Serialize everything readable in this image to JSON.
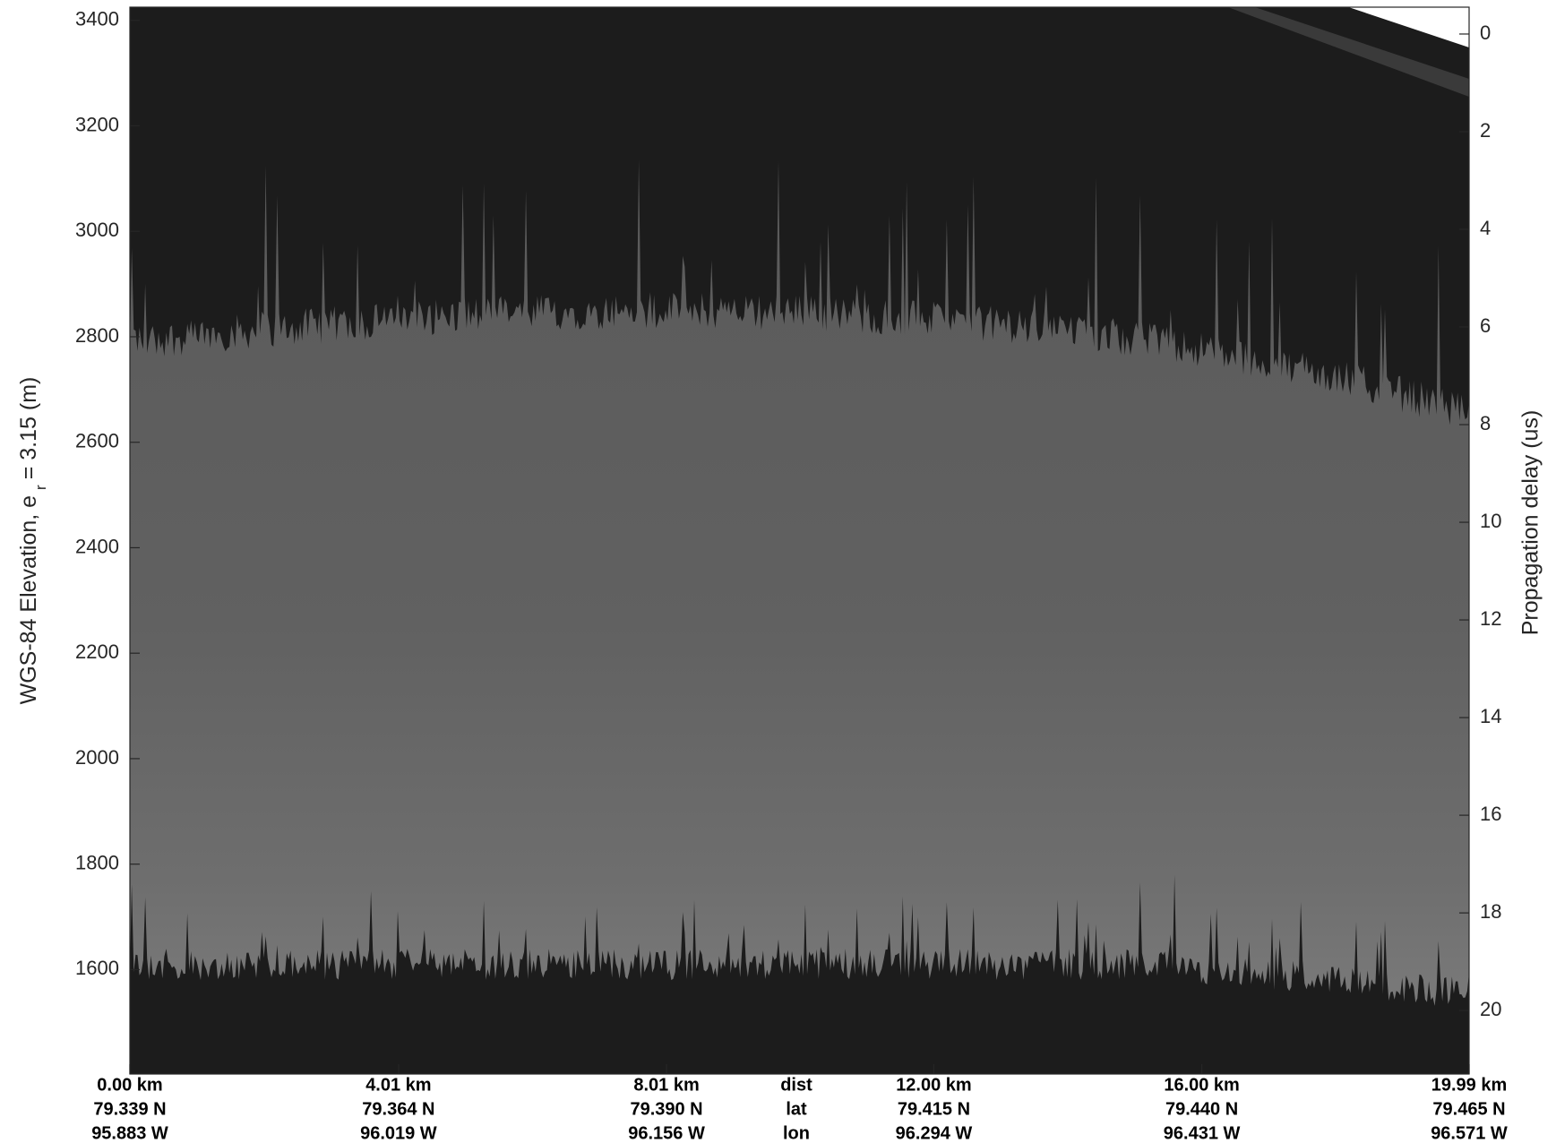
{
  "chart_data": {
    "type": "echogram",
    "ylabel": "WGS-84 Elevation, e",
    "ylabel_sub": "r",
    "ylabel_end": "= 3.15 (m)",
    "y2label": "Propagation delay (us)",
    "ylim": [
      1402,
      3425
    ],
    "yticks": [
      1600,
      1800,
      2000,
      2200,
      2400,
      2600,
      2800,
      3000,
      3200,
      3400
    ],
    "y2lim": [
      21.3,
      -0.55
    ],
    "y2ticks": [
      0,
      2,
      4,
      6,
      8,
      10,
      12,
      14,
      16,
      18,
      20
    ],
    "xlim": [
      0,
      19.99
    ],
    "xticks": [
      {
        "value": 0,
        "label": "0.00 km"
      },
      {
        "value": 4.01,
        "label": "4.01 km"
      },
      {
        "value": 8.01,
        "label": "8.01 km"
      },
      {
        "value": 12.0,
        "label": "12.00 km"
      },
      {
        "value": 16.0,
        "label": "16.00 km"
      },
      {
        "value": 19.99,
        "label": "19.99 km"
      }
    ],
    "lat_labels": [
      "79.339 N",
      "79.364 N",
      "79.390 N",
      "79.415 N",
      "79.440 N",
      "79.465 N"
    ],
    "lon_labels": [
      "95.883 W",
      "96.019 W",
      "96.156 W",
      "96.294 W",
      "96.431 W",
      "96.571 W"
    ],
    "row_labels": [
      "dist",
      "lat",
      "lon"
    ]
  }
}
